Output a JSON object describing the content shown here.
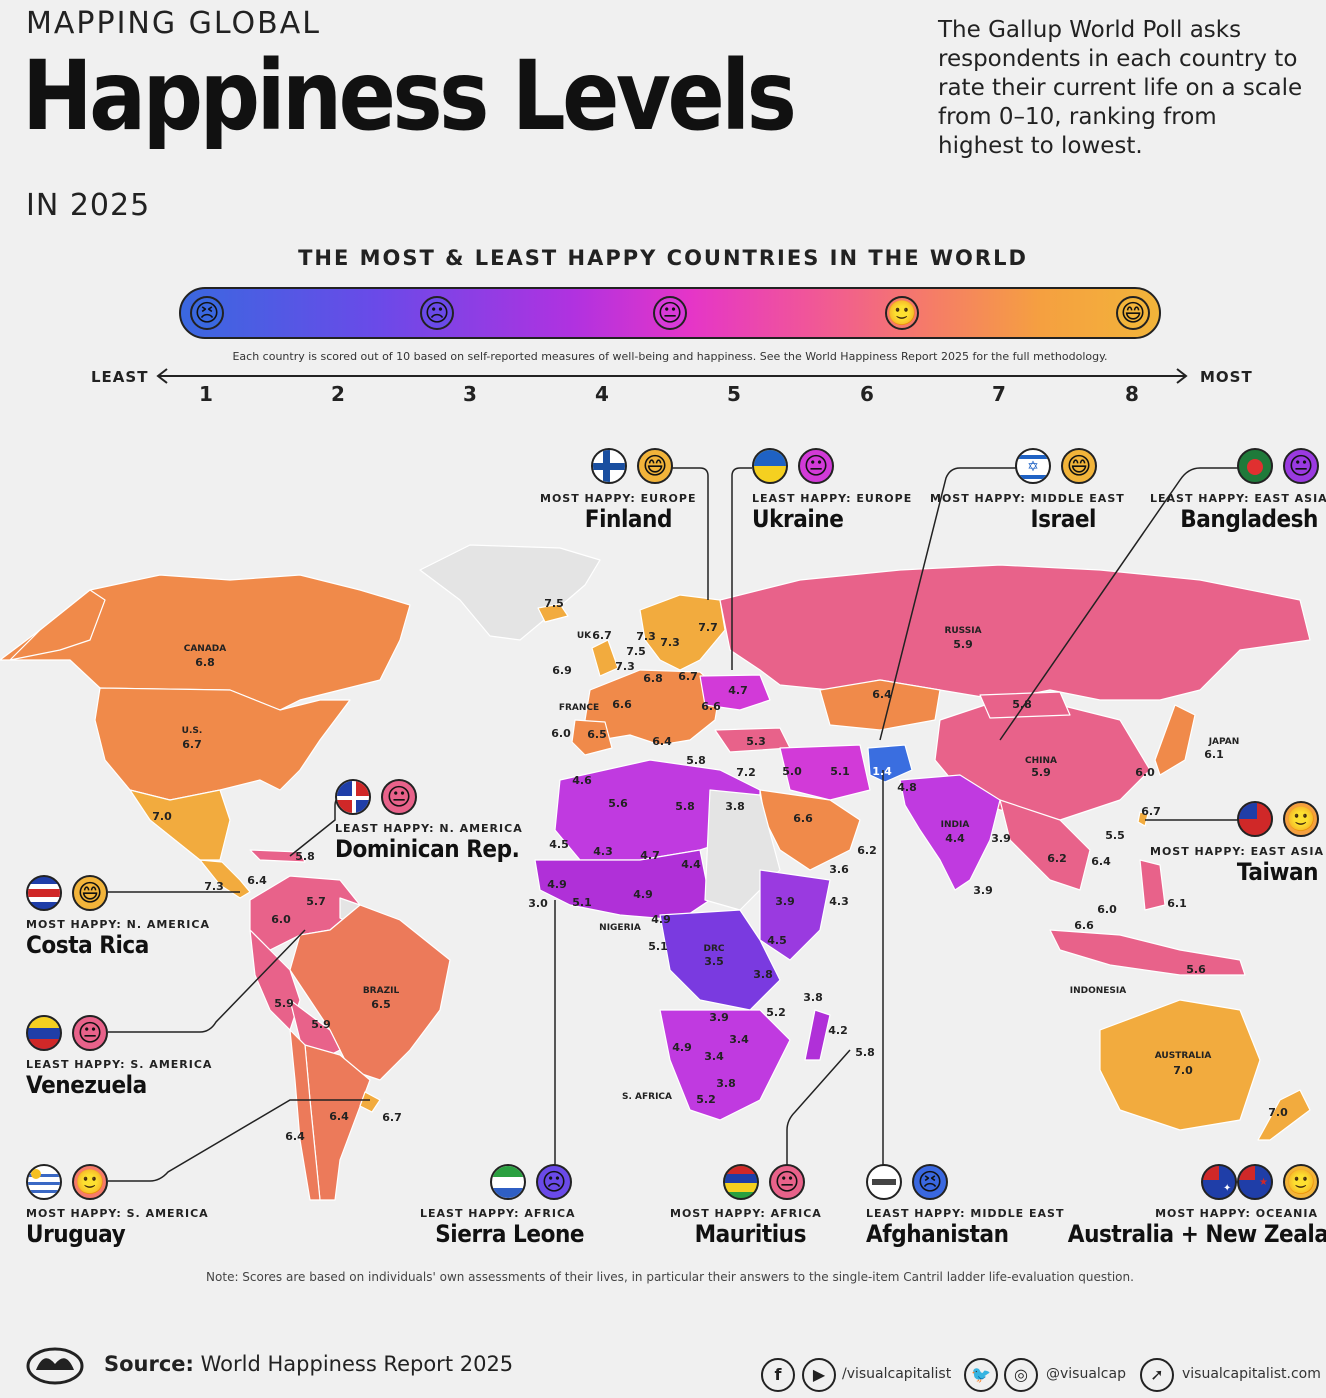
{
  "header": {
    "kicker": "MAPPING GLOBAL",
    "title": "Happiness Levels",
    "year": "IN 2025",
    "intro": "The Gallup World Poll asks respondents in each country to rate their current life on a scale from 0–10, ranking from highest to lowest."
  },
  "scale": {
    "title": "THE MOST & LEAST HAPPY COUNTRIES IN THE WORLD",
    "note": "Each country is scored out of 10 based on self-reported measures of well-being and happiness. See the World Happiness Report 2025 for the full methodology.",
    "least_label": "LEAST",
    "most_label": "MOST",
    "ticks": [
      "1",
      "2",
      "3",
      "4",
      "5",
      "6",
      "7",
      "8"
    ],
    "faces": [
      "very-angry-face-icon",
      "frowning-face-icon",
      "neutral-face-icon",
      "slight-smile-face-icon",
      "grinning-face-icon"
    ],
    "colors": [
      "#3a68e0",
      "#6a4ae8",
      "#b032e0",
      "#e535c8",
      "#f0559a",
      "#f57a6a",
      "#f5a040",
      "#f2b43a"
    ]
  },
  "map": {
    "country_labels": {
      "canada": "CANADA",
      "us": "U.S.",
      "brazil": "BRAZIL",
      "russia": "RUSSIA",
      "china": "CHINA",
      "japan": "JAPAN",
      "india": "INDIA",
      "australia": "AUSTRALIA",
      "indonesia": "INDONESIA",
      "nigeria": "NIGERIA",
      "drc": "DRC",
      "s_africa": "S. AFRICA",
      "uk": "UK",
      "france": "FRANCE"
    },
    "values": {
      "canada": "6.8",
      "us": "6.7",
      "mexico": "7.0",
      "guatemala": "6.4",
      "costa_rica": "7.3",
      "dominican": "5.8",
      "colombia": "6.0",
      "venezuela": "5.7",
      "brazil": "6.5",
      "peru": "5.9",
      "bolivia": "5.9",
      "argentina": "6.4",
      "uruguay": "6.7",
      "chile": "6.4",
      "iceland": "7.5",
      "uk": "6.7",
      "ireland": "6.9",
      "norway": "7.3",
      "sweden": "7.3",
      "finland": "7.7",
      "denmark": "7.5",
      "netherlands": "7.3",
      "germany": "6.8",
      "poland": "6.7",
      "france": "6.6",
      "spain": "6.5",
      "portugal": "6.0",
      "italy": "6.4",
      "balkans": "6.6",
      "ukraine": "4.7",
      "turkey": "5.3",
      "greece": "5.8",
      "israel": "7.2",
      "jordan": "5.0",
      "iran": "5.1",
      "afghanistan": "1.4",
      "pakistan": "4.8",
      "kazakhstan": "6.4",
      "mongolia": "5.8",
      "russia": "5.9",
      "china": "5.9",
      "japan": "6.1",
      "korea": "6.0",
      "taiwan": "6.7",
      "india": "4.4",
      "bangladesh": "3.9",
      "sri_lanka": "3.9",
      "thailand": "6.2",
      "vietnam": "6.4",
      "philippines": "6.1",
      "malaysia": "6.0",
      "indonesia_val": "5.6",
      "singapore": "6.6",
      "hong_kong": "5.5",
      "saudi": "6.6",
      "uae": "6.2",
      "yemen": "3.6",
      "egypt": "3.8",
      "libya": "5.8",
      "algeria": "5.6",
      "morocco": "4.6",
      "mauritania": "4.5",
      "mali": "4.3",
      "niger": "4.7",
      "chad": "4.4",
      "senegal": "4.9",
      "sierra_leone": "3.0",
      "liberia": "5.1",
      "nigeria_val": "4.9",
      "cameroon": "4.9",
      "congo": "5.1",
      "drc_val": "3.5",
      "ethiopia": "3.9",
      "somalia": "4.3",
      "kenya": "4.5",
      "tanzania": "3.8",
      "comoros": "3.8",
      "madagascar": "4.2",
      "mauritius": "5.8",
      "zambia": "3.9",
      "malawi": "3.4",
      "mozambique": "5.2",
      "zimbabwe": "3.4",
      "namibia": "4.9",
      "botswana": "3.4",
      "eswatini": "3.8",
      "s_africa_val": "5.2",
      "australia_val": "7.0",
      "new_zealand": "7.0",
      "sahel": "5.8"
    }
  },
  "callouts": [
    {
      "kicker": "MOST HAPPY: EUROPE",
      "name": "Finland",
      "flag": "finland-flag-icon",
      "face": "grinning-face-icon"
    },
    {
      "kicker": "LEAST HAPPY: EUROPE",
      "name": "Ukraine",
      "flag": "ukraine-flag-icon",
      "face": "neutral-face-icon"
    },
    {
      "kicker": "MOST HAPPY: MIDDLE EAST",
      "name": "Israel",
      "flag": "israel-flag-icon",
      "face": "grinning-face-icon"
    },
    {
      "kicker": "LEAST HAPPY: EAST ASIA",
      "name": "Bangladesh",
      "flag": "bangladesh-flag-icon",
      "face": "neutral-face-icon"
    },
    {
      "kicker": "LEAST HAPPY: N. AMERICA",
      "name": "Dominican Rep.",
      "flag": "dominican-flag-icon",
      "face": "neutral-face-icon"
    },
    {
      "kicker": "MOST HAPPY: EAST ASIA",
      "name": "Taiwan",
      "flag": "taiwan-flag-icon",
      "face": "slight-smile-face-icon"
    },
    {
      "kicker": "MOST HAPPY: N. AMERICA",
      "name": "Costa Rica",
      "flag": "costa-rica-flag-icon",
      "face": "grinning-face-icon"
    },
    {
      "kicker": "LEAST HAPPY: S. AMERICA",
      "name": "Venezuela",
      "flag": "venezuela-flag-icon",
      "face": "neutral-face-icon"
    },
    {
      "kicker": "MOST HAPPY: S. AMERICA",
      "name": "Uruguay",
      "flag": "uruguay-flag-icon",
      "face": "slight-smile-face-icon"
    },
    {
      "kicker": "LEAST HAPPY: AFRICA",
      "name": "Sierra Leone",
      "flag": "sierra-leone-flag-icon",
      "face": "frowning-face-icon"
    },
    {
      "kicker": "MOST HAPPY: AFRICA",
      "name": "Mauritius",
      "flag": "mauritius-flag-icon",
      "face": "neutral-face-icon"
    },
    {
      "kicker": "LEAST HAPPY: MIDDLE EAST",
      "name": "Afghanistan",
      "flag": "afghanistan-flag-icon",
      "face": "very-angry-face-icon"
    },
    {
      "kicker": "MOST HAPPY: OCEANIA",
      "name": "Australia + New Zealand",
      "flag": "australia-nz-flag-icon",
      "face": "slight-smile-face-icon"
    }
  ],
  "footer": {
    "note": "Note: Scores are based on individuals' own assessments of their lives, in particular their answers to the single-item Cantril ladder life-evaluation question.",
    "source_label": "Source:",
    "source_text": "World Happiness Report 2025",
    "handle_fb_yt": "/visualcapitalist",
    "handle_tw_ig": "@visualcap",
    "website": "visualcapitalist.com",
    "icons": [
      "facebook-icon",
      "youtube-icon",
      "twitter-icon",
      "instagram-icon",
      "cursor-icon",
      "vc-logo-icon"
    ]
  }
}
